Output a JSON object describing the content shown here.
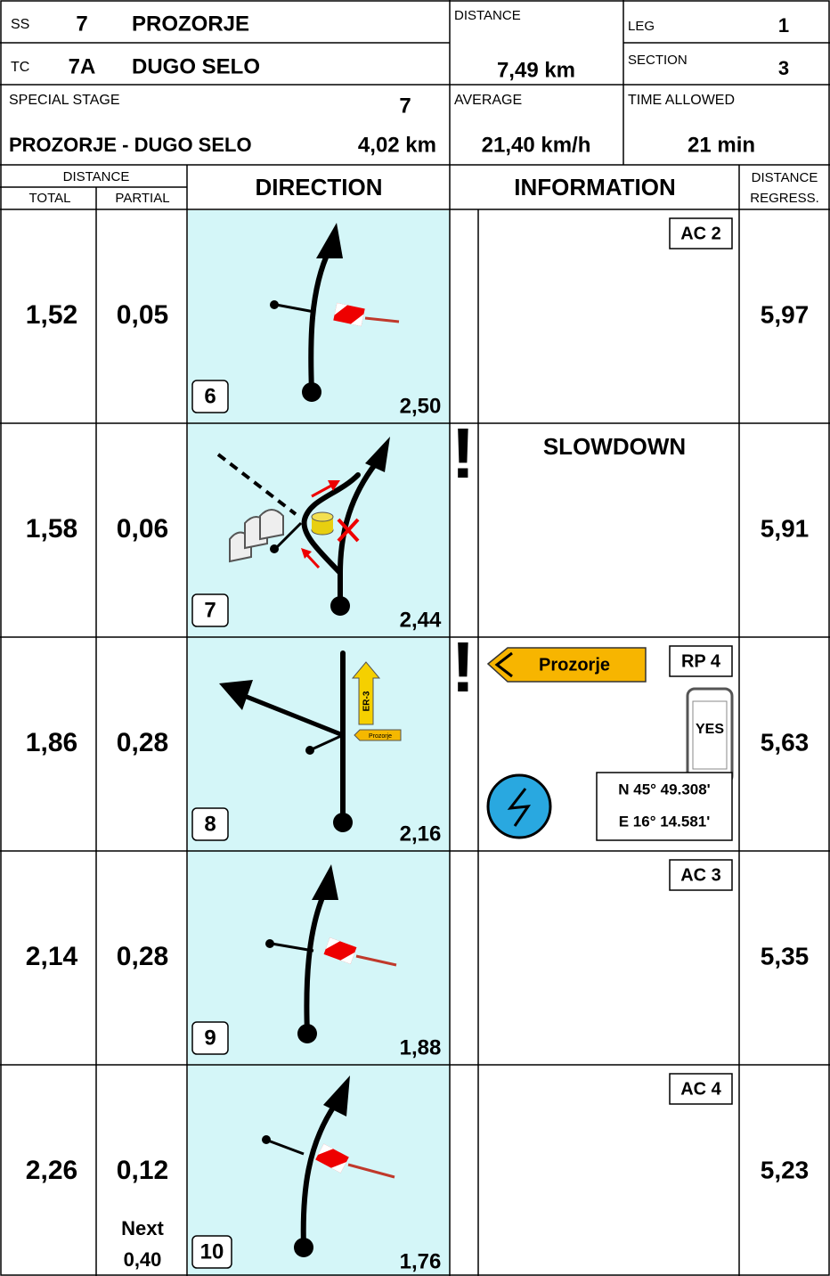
{
  "header": {
    "ss_label": "SS",
    "ss_number": "7",
    "ss_name": "PROZORJE",
    "tc_label": "TC",
    "tc_number": "7A",
    "tc_name": "DUGO SELO",
    "distance_label": "DISTANCE",
    "distance": "7,49 km",
    "leg_label": "LEG",
    "leg": "1",
    "section_label": "SECTION",
    "section": "3",
    "special_stage_label": "SPECIAL STAGE",
    "special_stage_number": "7",
    "stage_name": "PROZORJE - DUGO SELO",
    "stage_length": "4,02 km",
    "average_label": "AVERAGE",
    "average": "21,40 km/h",
    "time_allowed_label": "TIME ALLOWED",
    "time_allowed": "21 min"
  },
  "columns": {
    "distance": "DISTANCE",
    "total": "TOTAL",
    "partial": "PARTIAL",
    "direction": "DIRECTION",
    "information": "INFORMATION",
    "regress": [
      "DISTANCE",
      "REGRESS."
    ]
  },
  "rows": [
    {
      "total": "1,52",
      "partial": "0,05",
      "box": "6",
      "direction_distance": "2,50",
      "regress": "5,97",
      "info": {
        "label": "AC 2"
      }
    },
    {
      "total": "1,58",
      "partial": "0,06",
      "box": "7",
      "direction_distance": "2,44",
      "regress": "5,91",
      "info": {
        "text": "SLOWDOWN"
      }
    },
    {
      "total": "1,86",
      "partial": "0,28",
      "box": "8",
      "direction_distance": "2,16",
      "regress": "5,63",
      "info": {
        "sign": "Prozorje",
        "label": "RP 4",
        "phone": "YES",
        "gps": [
          "N 45° 49.308'",
          "E 16° 14.581'"
        ]
      },
      "diagram_labels": [
        "ER-3",
        "Prozorje"
      ]
    },
    {
      "total": "2,14",
      "partial": "0,28",
      "box": "9",
      "direction_distance": "1,88",
      "regress": "5,35",
      "info": {
        "label": "AC 3"
      }
    },
    {
      "total": "2,26",
      "partial": "0,12",
      "box": "10",
      "direction_distance": "1,76",
      "regress": "5,23",
      "info": {
        "label": "AC 4"
      },
      "next": {
        "label": "Next",
        "distance": "0,40"
      }
    }
  ]
}
